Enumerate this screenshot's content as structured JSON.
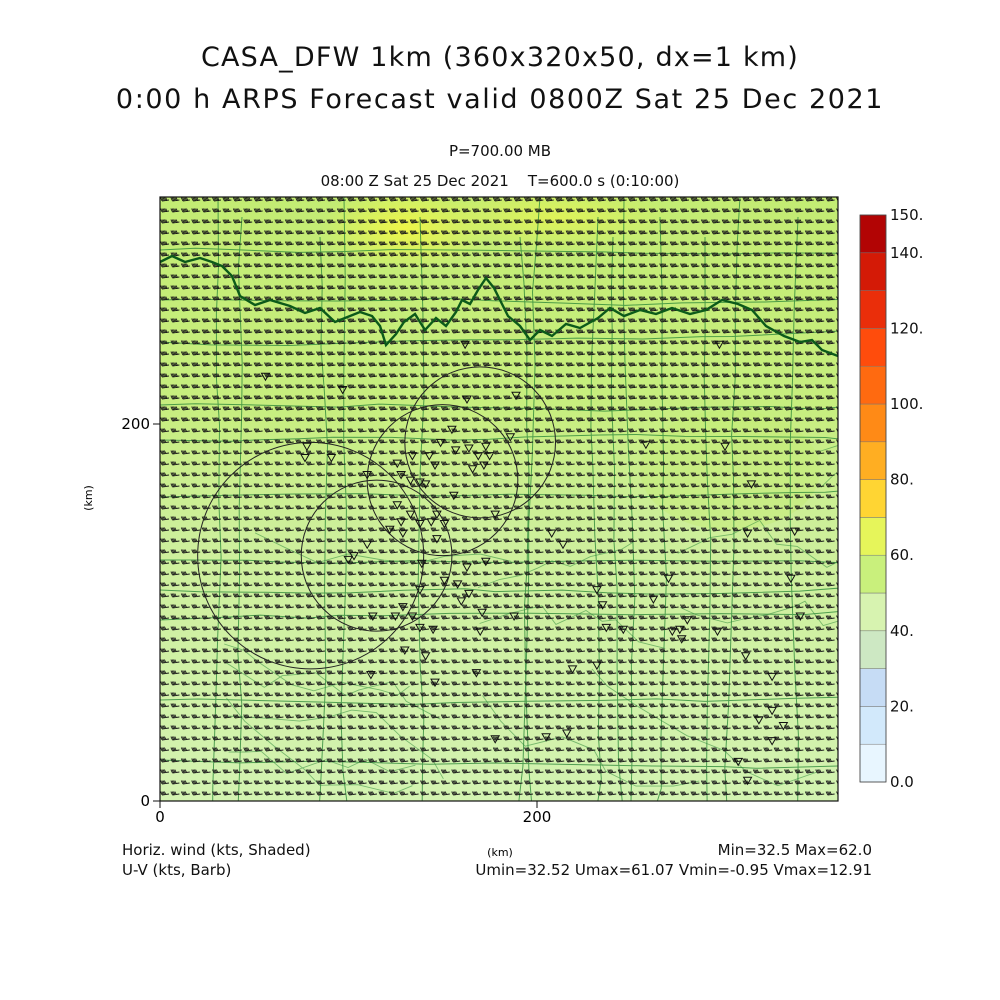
{
  "header": {
    "title_line1": "CASA_DFW 1km (360x320x50, dx=1 km)",
    "title_line2": "0:00 h ARPS Forecast valid 0800Z Sat 25 Dec 2021",
    "pressure_level": "P=700.00 MB",
    "valid_time": "08:00 Z Sat 25 Dec 2021    T=600.0 s (0:10:00)"
  },
  "axes": {
    "x_unit": "(km)",
    "y_unit": "(km)",
    "x_ticks": [
      "0",
      "200"
    ],
    "y_ticks": [
      "0",
      "200"
    ],
    "x_range_km": [
      0,
      360
    ],
    "y_range_km": [
      0,
      320
    ]
  },
  "colorbar": {
    "labels": [
      "150.",
      "140.",
      "120.",
      "100.",
      "80.",
      "60.",
      "40.",
      "20.",
      "0.0"
    ],
    "levels": [
      0,
      10,
      20,
      30,
      40,
      50,
      60,
      70,
      80,
      90,
      100,
      110,
      120,
      130,
      140,
      150
    ],
    "colors": [
      "#e8f6ff",
      "#d2e9fb",
      "#c6dcf5",
      "#cde8c3",
      "#d7f3b0",
      "#c9f07c",
      "#e6f55a",
      "#ffd533",
      "#ffae22",
      "#ff8a16",
      "#ff6a10",
      "#ff4c0c",
      "#ea2e0a",
      "#d41a06",
      "#b20404"
    ]
  },
  "legend": {
    "shaded_label": "Horiz. wind (kts, Shaded)",
    "barb_label": "U-V (kts, Barb)",
    "min_max": "Min=32.5 Max=62.0",
    "uv_stats": "Umin=32.52 Umax=61.07 Vmin=-0.95 Vmax=12.91"
  },
  "field_stats": {
    "min": 32.5,
    "max": 62.0,
    "umin": 32.52,
    "umax": 61.07,
    "vmin": -0.95,
    "vmax": 12.91
  },
  "radar_sites_km": [
    {
      "x": 80,
      "y": 130,
      "range_km": 60
    },
    {
      "x": 115,
      "y": 130,
      "range_km": 40
    },
    {
      "x": 150,
      "y": 170,
      "range_km": 40
    },
    {
      "x": 170,
      "y": 190,
      "range_km": 40
    }
  ],
  "stations_km": [
    [
      56,
      225
    ],
    [
      97,
      218
    ],
    [
      162,
      242
    ],
    [
      163,
      213
    ],
    [
      189,
      215
    ],
    [
      186,
      193
    ],
    [
      78,
      188
    ],
    [
      77,
      182
    ],
    [
      91,
      182
    ],
    [
      155,
      197
    ],
    [
      149,
      190
    ],
    [
      164,
      187
    ],
    [
      169,
      183
    ],
    [
      175,
      183
    ],
    [
      173,
      188
    ],
    [
      157,
      186
    ],
    [
      166,
      176
    ],
    [
      172,
      178
    ],
    [
      143,
      183
    ],
    [
      134,
      183
    ],
    [
      126,
      179
    ],
    [
      110,
      173
    ],
    [
      141,
      168
    ],
    [
      146,
      178
    ],
    [
      128,
      173
    ],
    [
      133,
      170
    ],
    [
      138,
      169
    ],
    [
      156,
      162
    ],
    [
      126,
      157
    ],
    [
      133,
      152
    ],
    [
      138,
      147
    ],
    [
      128,
      148
    ],
    [
      144,
      148
    ],
    [
      147,
      152
    ],
    [
      151,
      147
    ],
    [
      147,
      139
    ],
    [
      129,
      142
    ],
    [
      122,
      144
    ],
    [
      178,
      152
    ],
    [
      110,
      136
    ],
    [
      103,
      130
    ],
    [
      100,
      128
    ],
    [
      139,
      126
    ],
    [
      138,
      112
    ],
    [
      158,
      115
    ],
    [
      151,
      117
    ],
    [
      163,
      124
    ],
    [
      173,
      127
    ],
    [
      164,
      110
    ],
    [
      171,
      100
    ],
    [
      188,
      98
    ],
    [
      113,
      98
    ],
    [
      125,
      98
    ],
    [
      134,
      98
    ],
    [
      145,
      91
    ],
    [
      138,
      92
    ],
    [
      129,
      103
    ],
    [
      170,
      90
    ],
    [
      160,
      106
    ],
    [
      112,
      67
    ],
    [
      130,
      80
    ],
    [
      141,
      77
    ],
    [
      168,
      68
    ],
    [
      146,
      63
    ],
    [
      178,
      33
    ],
    [
      205,
      34
    ],
    [
      216,
      36
    ],
    [
      219,
      70
    ],
    [
      232,
      72
    ],
    [
      258,
      189
    ],
    [
      300,
      188
    ],
    [
      314,
      168
    ],
    [
      297,
      242
    ],
    [
      208,
      142
    ],
    [
      214,
      136
    ],
    [
      232,
      112
    ],
    [
      235,
      104
    ],
    [
      237,
      92
    ],
    [
      246,
      91
    ],
    [
      262,
      107
    ],
    [
      270,
      118
    ],
    [
      272,
      90
    ],
    [
      276,
      91
    ],
    [
      277,
      86
    ],
    [
      280,
      96
    ],
    [
      296,
      90
    ],
    [
      311,
      77
    ],
    [
      325,
      66
    ],
    [
      325,
      48
    ],
    [
      318,
      43
    ],
    [
      331,
      40
    ],
    [
      307,
      21
    ],
    [
      312,
      11
    ],
    [
      325,
      32
    ],
    [
      335,
      118
    ],
    [
      340,
      98
    ],
    [
      337,
      143
    ],
    [
      312,
      142
    ]
  ]
}
